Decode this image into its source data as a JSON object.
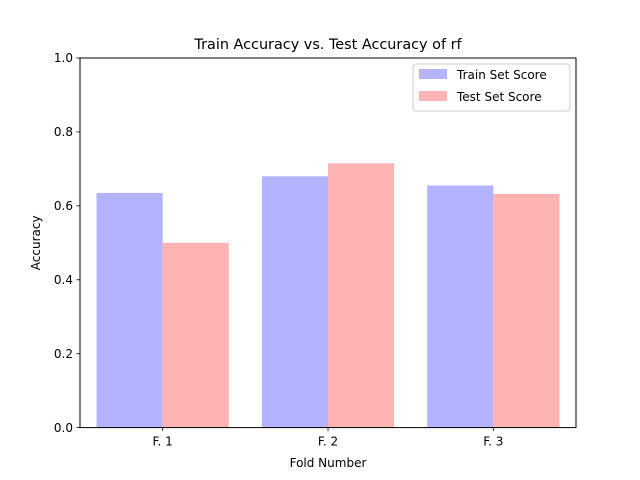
{
  "chart_data": {
    "type": "bar",
    "title": "Train Accuracy vs. Test Accuracy of rf",
    "xlabel": "Fold Number",
    "ylabel": "Accuracy",
    "categories": [
      "F. 1",
      "F. 2",
      "F. 3"
    ],
    "series": [
      {
        "name": "Train Set Score",
        "values": [
          0.635,
          0.68,
          0.655
        ],
        "color": "#b3b3ff"
      },
      {
        "name": "Test Set Score",
        "values": [
          0.5,
          0.715,
          0.632
        ],
        "color": "#ffb3b3"
      }
    ],
    "ylim": [
      0,
      1.0
    ],
    "yticks": [
      "0.0",
      "0.2",
      "0.4",
      "0.6",
      "0.8",
      "1.0"
    ],
    "grid": false,
    "legend_position": "top-right"
  }
}
